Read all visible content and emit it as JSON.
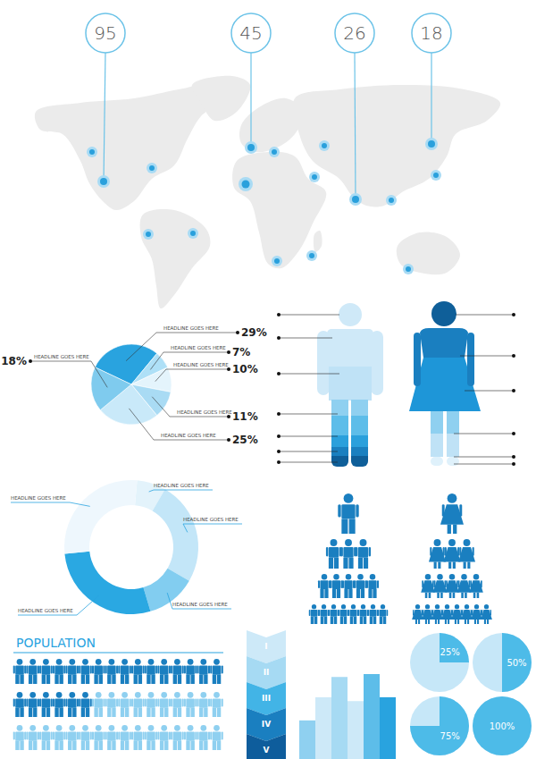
{
  "chart_data": [
    {
      "type": "map",
      "values": [
        95,
        45,
        26,
        18
      ],
      "data_labels": true
    },
    {
      "type": "pie",
      "labels": [
        "HEADLINE GOES HERE",
        "HEADLINE GOES HERE",
        "HEADLINE GOES HERE",
        "HEADLINE GOES HERE",
        "HEADLINE GOES HERE",
        "HEADLINE GOES HERE"
      ],
      "values": [
        29,
        7,
        10,
        11,
        25,
        18
      ],
      "value_labels": [
        "29%",
        "7%",
        "10%",
        "11%",
        "25%",
        "18%"
      ],
      "colors": [
        "#29a3df",
        "#aee0f7",
        "#e4f4fc",
        "#a9dbf4",
        "#c9e9f9",
        "#7fcbee"
      ],
      "data_labels": true
    },
    {
      "type": "donut",
      "labels": [
        "HEADLINE GOES HERE",
        "HEADLINE GOES HERE",
        "HEADLINE GOES HERE",
        "HEADLINE GOES HERE",
        "HEADLINE GOES HERE"
      ],
      "values": [
        7,
        25,
        12,
        28,
        28
      ],
      "colors": [
        "#e3f3fb",
        "#c3e6f8",
        "#82cdf0",
        "#2aa8e2",
        "#eef7fd"
      ]
    },
    {
      "type": "pyramid",
      "series": [
        {
          "values": [
            1,
            3,
            5,
            8
          ],
          "color": "#1a7fc0",
          "marker": "male"
        },
        {
          "values": [
            1,
            3,
            5,
            8
          ],
          "color": "#1a7fc0",
          "marker": "female"
        }
      ]
    },
    {
      "type": "pictogram",
      "title": "POPULATION",
      "values": [
        22,
        26
      ],
      "colors": [
        "#1a7fc0",
        "#8fd0f0"
      ]
    },
    {
      "type": "list",
      "categories": [
        "I",
        "II",
        "III",
        "IV",
        "V"
      ],
      "colors": [
        "#cde9f8",
        "#a6daf3",
        "#42b4e6",
        "#1a7fc0",
        "#0e5d9c"
      ]
    },
    {
      "type": "bar",
      "values": [
        40,
        64,
        85,
        60,
        88,
        64
      ],
      "colors": [
        "#8fd0f0",
        "#cde9f8",
        "#a6daf3",
        "#cde9f8",
        "#5dbde9",
        "#29a3df"
      ],
      "tick_labels": false
    },
    {
      "type": "pie",
      "values": [
        25,
        50,
        75,
        100
      ],
      "value_labels": [
        "25%",
        "50%",
        "75%",
        "100%"
      ],
      "data_labels": true
    }
  ]
}
